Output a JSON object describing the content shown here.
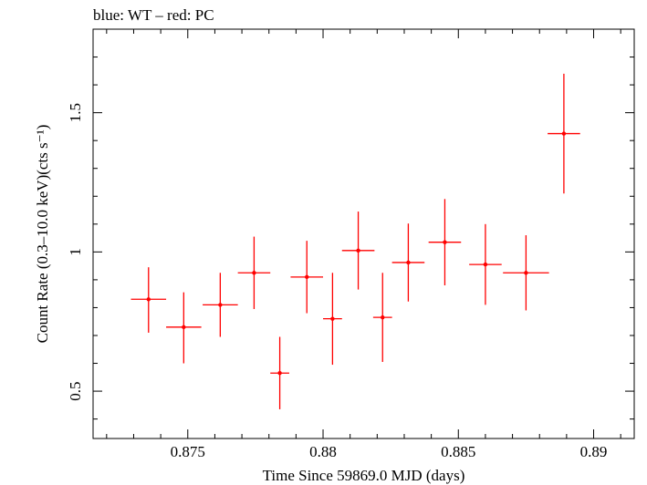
{
  "chart_data": {
    "type": "scatter",
    "title": "blue: WT – red: PC",
    "xlabel": "Time Since 59869.0 MJD (days)",
    "ylabel": "Count Rate (0.3–10.0 keV)(cts s⁻¹)",
    "xlim": [
      0.8715,
      0.8915
    ],
    "ylim": [
      0.33,
      1.8
    ],
    "x_ticks": [
      0.875,
      0.88,
      0.885,
      0.89
    ],
    "x_tick_labels": [
      "0.875",
      "0.88",
      "0.885",
      "0.89"
    ],
    "y_ticks": [
      0.5,
      1.0,
      1.5
    ],
    "y_tick_labels": [
      "0.5",
      "1",
      "1.5"
    ],
    "grid": false,
    "series": [
      {
        "color": "#ff0000",
        "points": [
          {
            "x": 0.87355,
            "y": 0.83,
            "xerr": 0.00065,
            "yerr_lo": 0.12,
            "yerr_hi": 0.115
          },
          {
            "x": 0.87485,
            "y": 0.73,
            "xerr": 0.00065,
            "yerr_lo": 0.13,
            "yerr_hi": 0.125
          },
          {
            "x": 0.8762,
            "y": 0.81,
            "xerr": 0.00065,
            "yerr_lo": 0.115,
            "yerr_hi": 0.115
          },
          {
            "x": 0.87745,
            "y": 0.925,
            "xerr": 0.0006,
            "yerr_lo": 0.13,
            "yerr_hi": 0.13
          },
          {
            "x": 0.8784,
            "y": 0.565,
            "xerr": 0.00035,
            "yerr_lo": 0.13,
            "yerr_hi": 0.13
          },
          {
            "x": 0.8794,
            "y": 0.91,
            "xerr": 0.0006,
            "yerr_lo": 0.13,
            "yerr_hi": 0.13
          },
          {
            "x": 0.88035,
            "y": 0.76,
            "xerr": 0.00035,
            "yerr_lo": 0.165,
            "yerr_hi": 0.165
          },
          {
            "x": 0.8813,
            "y": 1.005,
            "xerr": 0.0006,
            "yerr_lo": 0.14,
            "yerr_hi": 0.14
          },
          {
            "x": 0.8822,
            "y": 0.765,
            "xerr": 0.00035,
            "yerr_lo": 0.16,
            "yerr_hi": 0.16
          },
          {
            "x": 0.88315,
            "y": 0.962,
            "xerr": 0.0006,
            "yerr_lo": 0.14,
            "yerr_hi": 0.14
          },
          {
            "x": 0.8845,
            "y": 1.035,
            "xerr": 0.0006,
            "yerr_lo": 0.155,
            "yerr_hi": 0.155
          },
          {
            "x": 0.886,
            "y": 0.955,
            "xerr": 0.0006,
            "yerr_lo": 0.145,
            "yerr_hi": 0.145
          },
          {
            "x": 0.8875,
            "y": 0.925,
            "xerr": 0.00085,
            "yerr_lo": 0.135,
            "yerr_hi": 0.135
          },
          {
            "x": 0.8889,
            "y": 1.425,
            "xerr": 0.0006,
            "yerr_lo": 0.215,
            "yerr_hi": 0.215
          }
        ]
      }
    ]
  }
}
